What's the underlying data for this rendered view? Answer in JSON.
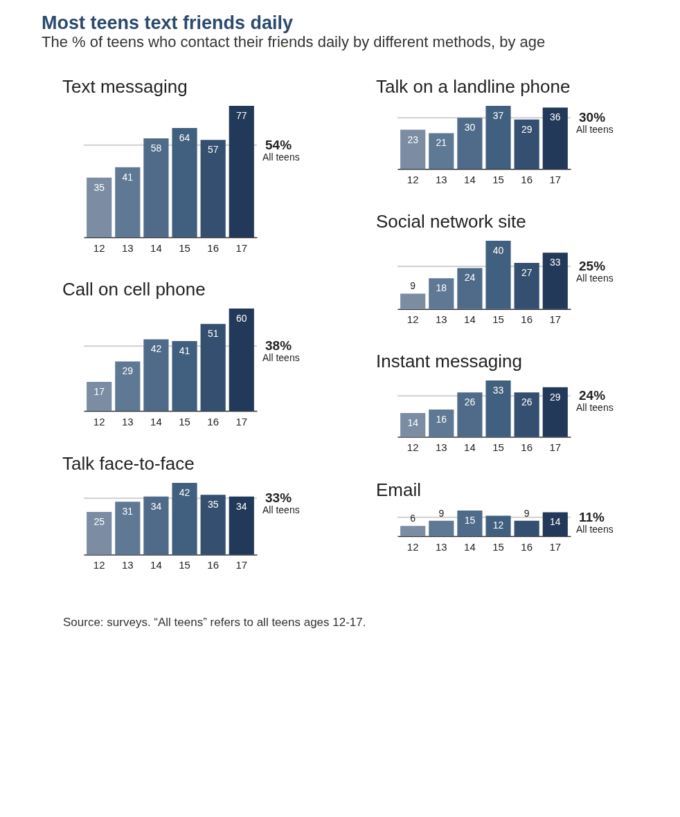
{
  "chart_data": [
    {
      "type": "other",
      "title": "Most teens text friends daily",
      "subtitle": "The % of teens who contact their friends daily by different methods, by age",
      "annotations": [
        "Source: surveys. “All teens” refers to all teens ages 12-17."
      ]
    },
    {
      "type": "bar",
      "title": "Text messaging",
      "categories": [
        "12",
        "13",
        "14",
        "15",
        "16",
        "17"
      ],
      "values": [
        35,
        41,
        58,
        64,
        57,
        77
      ],
      "colors": [
        "#7b8ca3",
        "#5f7894",
        "#4f6b89",
        "#41607f",
        "#344f6f",
        "#22395a"
      ],
      "data_labels": true,
      "ref_lines": [
        {
          "axis": "y",
          "value": 54,
          "label": "54%"
        }
      ],
      "annotations": [
        "All teens"
      ]
    },
    {
      "type": "bar",
      "title": "Call on cell phone",
      "categories": [
        "12",
        "13",
        "14",
        "15",
        "16",
        "17"
      ],
      "values": [
        17,
        29,
        42,
        41,
        51,
        60
      ],
      "colors": [
        "#7b8ca3",
        "#5f7894",
        "#4f6b89",
        "#41607f",
        "#344f6f",
        "#22395a"
      ],
      "data_labels": true,
      "ref_lines": [
        {
          "axis": "y",
          "value": 38,
          "label": "38%"
        }
      ],
      "annotations": [
        "All teens"
      ]
    },
    {
      "type": "bar",
      "title": "Talk face-to-face",
      "categories": [
        "12",
        "13",
        "14",
        "15",
        "16",
        "17"
      ],
      "values": [
        25,
        31,
        34,
        42,
        35,
        34
      ],
      "colors": [
        "#7b8ca3",
        "#5f7894",
        "#4f6b89",
        "#41607f",
        "#344f6f",
        "#22395a"
      ],
      "data_labels": true,
      "ref_lines": [
        {
          "axis": "y",
          "value": 33,
          "label": "33%"
        }
      ],
      "annotations": [
        "All teens"
      ]
    },
    {
      "type": "bar",
      "title": "Talk on a landline phone",
      "categories": [
        "12",
        "13",
        "14",
        "15",
        "16",
        "17"
      ],
      "values": [
        23,
        21,
        30,
        37,
        29,
        36
      ],
      "colors": [
        "#7b8ca3",
        "#5f7894",
        "#4f6b89",
        "#41607f",
        "#344f6f",
        "#22395a"
      ],
      "data_labels": true,
      "ref_lines": [
        {
          "axis": "y",
          "value": 30,
          "label": "30%"
        }
      ],
      "annotations": [
        "All teens"
      ]
    },
    {
      "type": "bar",
      "title": "Social network site",
      "categories": [
        "12",
        "13",
        "14",
        "15",
        "16",
        "17"
      ],
      "values": [
        9,
        18,
        24,
        40,
        27,
        33
      ],
      "colors": [
        "#7b8ca3",
        "#5f7894",
        "#4f6b89",
        "#41607f",
        "#344f6f",
        "#22395a"
      ],
      "data_labels": true,
      "ref_lines": [
        {
          "axis": "y",
          "value": 25,
          "label": "25%"
        }
      ],
      "annotations": [
        "All teens"
      ]
    },
    {
      "type": "bar",
      "title": "Instant messaging",
      "categories": [
        "12",
        "13",
        "14",
        "15",
        "16",
        "17"
      ],
      "values": [
        14,
        16,
        26,
        33,
        26,
        29
      ],
      "colors": [
        "#7b8ca3",
        "#5f7894",
        "#4f6b89",
        "#41607f",
        "#344f6f",
        "#22395a"
      ],
      "data_labels": true,
      "ref_lines": [
        {
          "axis": "y",
          "value": 24,
          "label": "24%"
        }
      ],
      "annotations": [
        "All teens"
      ]
    },
    {
      "type": "bar",
      "title": "Email",
      "categories": [
        "12",
        "13",
        "14",
        "15",
        "16",
        "17"
      ],
      "values": [
        6,
        9,
        15,
        12,
        9,
        14
      ],
      "colors": [
        "#7b8ca3",
        "#5f7894",
        "#4f6b89",
        "#41607f",
        "#344f6f",
        "#22395a"
      ],
      "data_labels": true,
      "ref_lines": [
        {
          "axis": "y",
          "value": 11,
          "label": "11%"
        }
      ],
      "annotations": [
        "All teens"
      ]
    }
  ]
}
